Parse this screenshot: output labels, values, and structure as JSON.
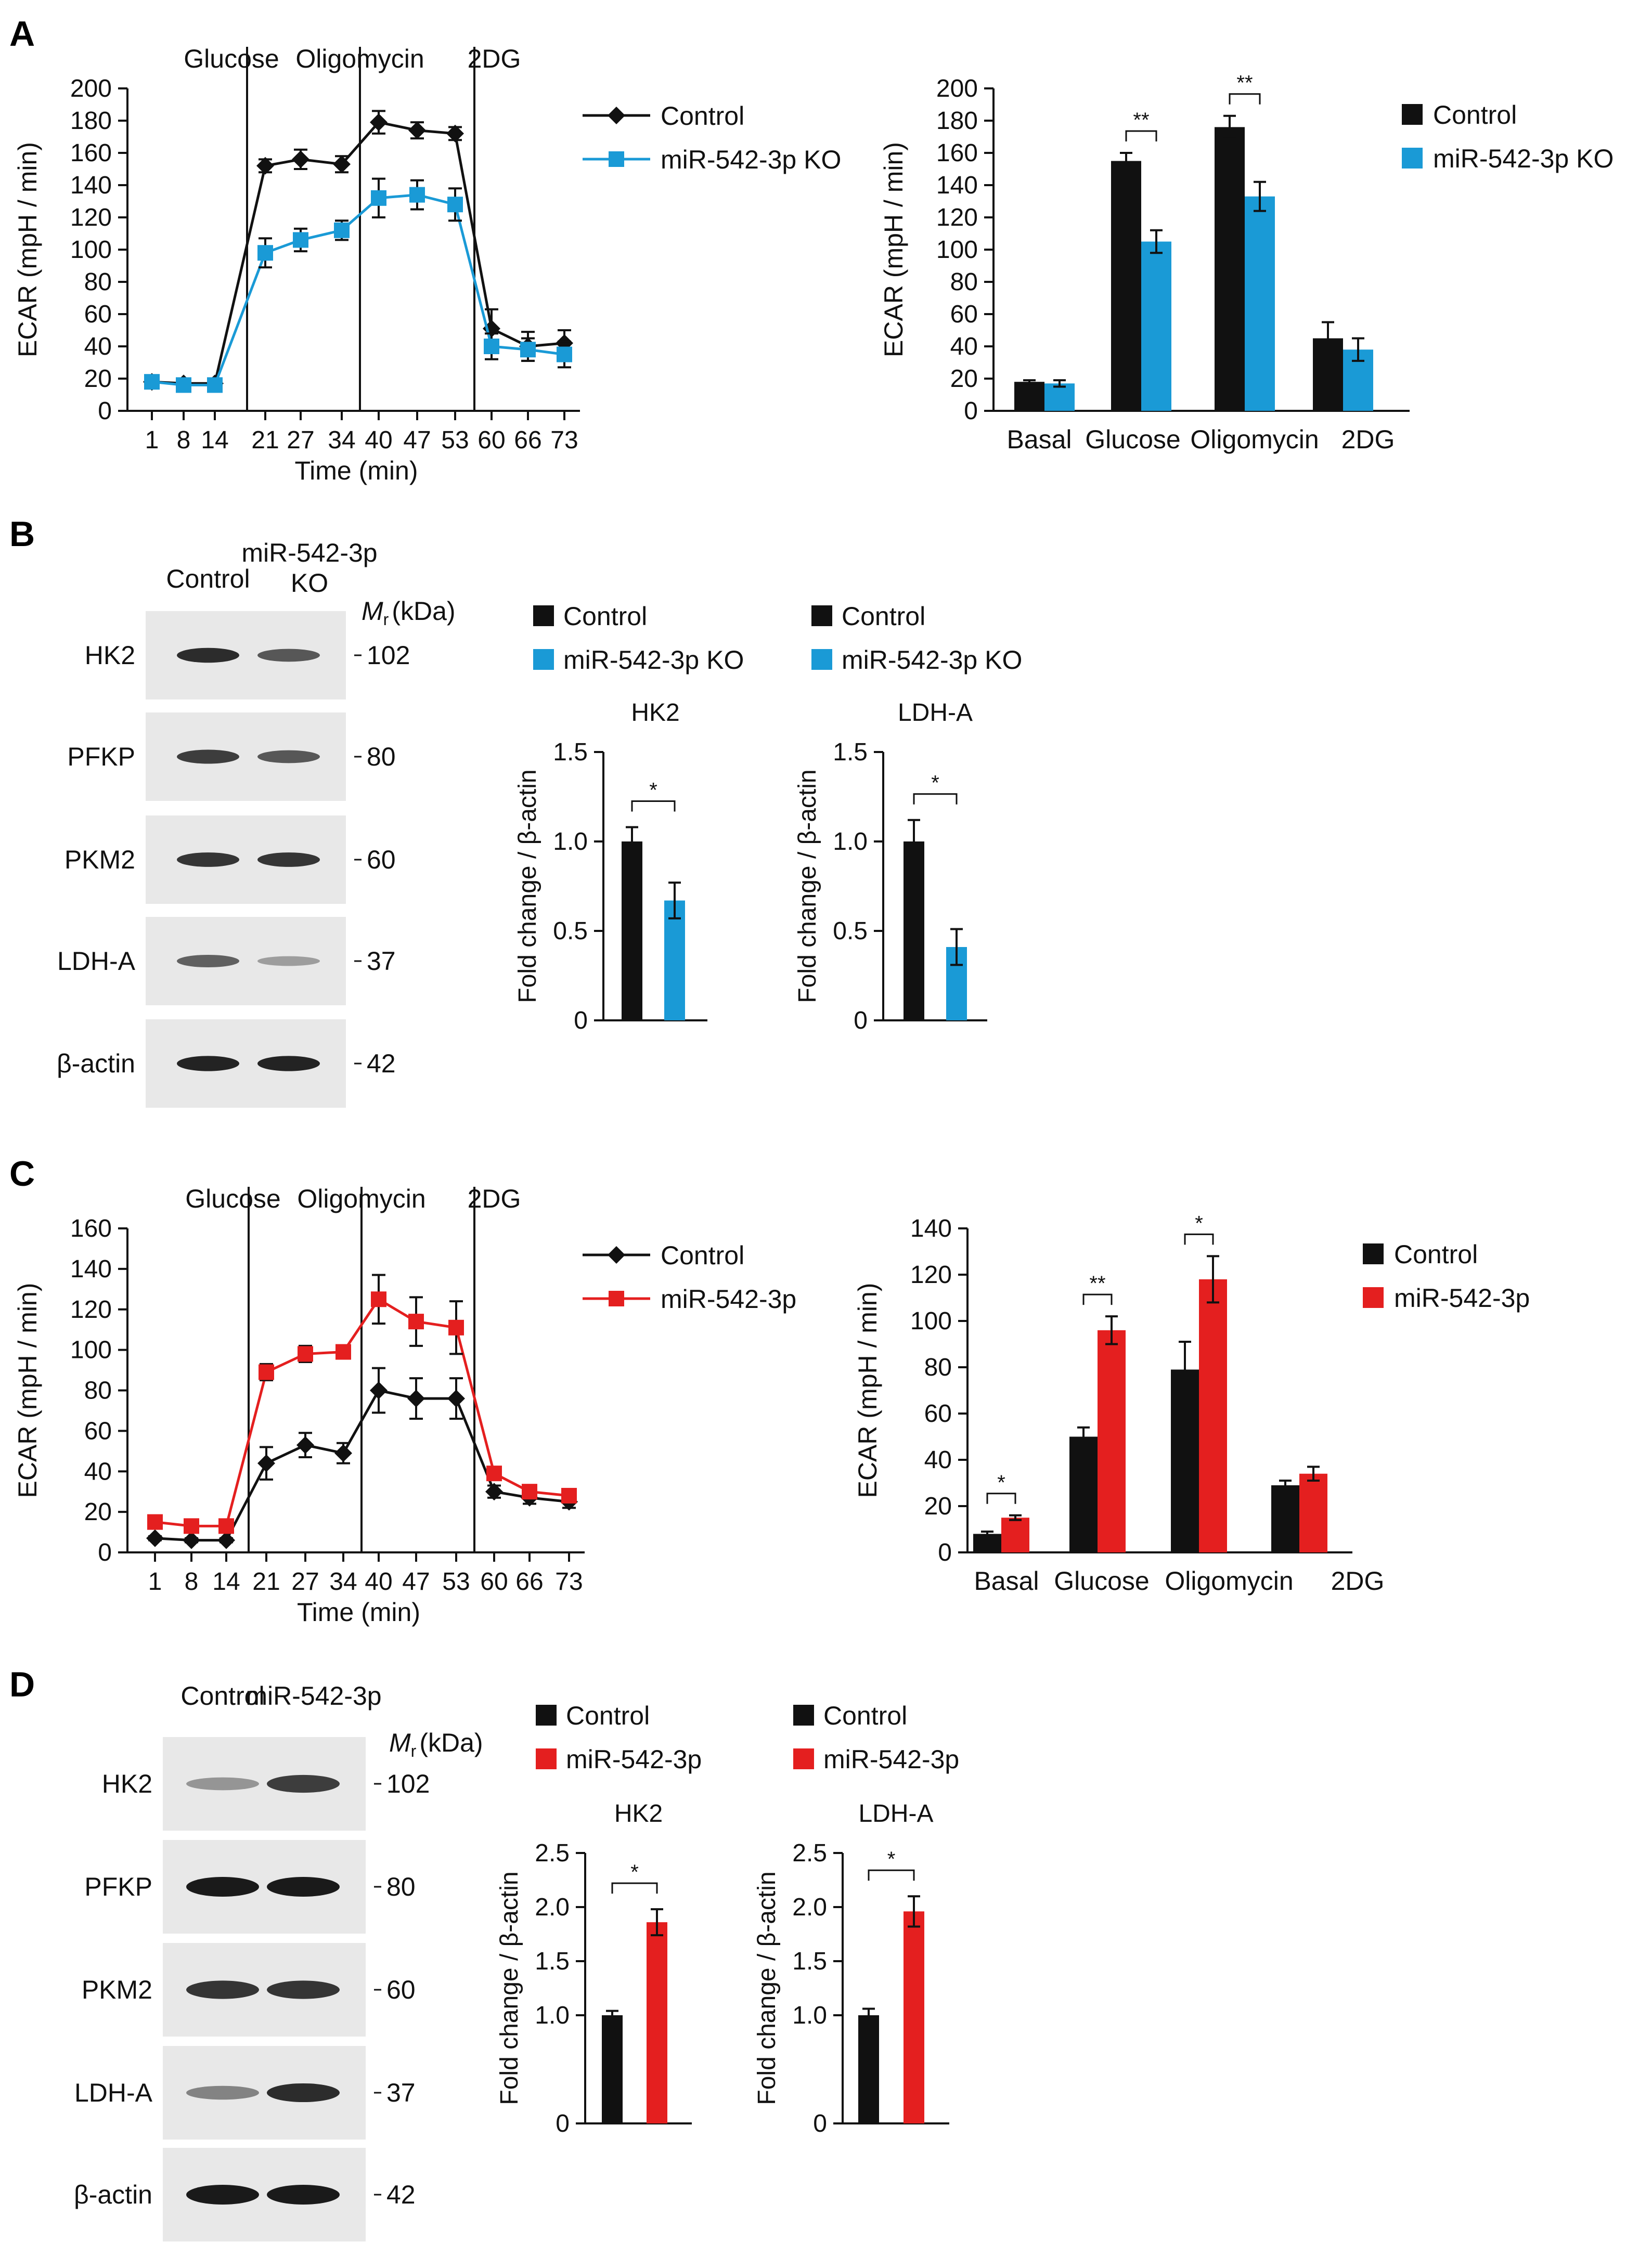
{
  "colors": {
    "control": "#111111",
    "ko": "#1a9ad6",
    "mir": "#e41f1f",
    "blot_bg": "#e8e8e8",
    "band": "#1a1a1a"
  },
  "figure": {
    "panels": [
      {
        "label": "A",
        "legend_control": "Control",
        "legend_treat": "miR-542-3p KO"
      },
      {
        "label": "B",
        "lane_control": "Control",
        "lane_treat_1": "miR-542-3p",
        "lane_treat_2": "KO",
        "mr_label": "(kDa)"
      },
      {
        "label": "C",
        "legend_control": "Control",
        "legend_treat": "miR-542-3p"
      },
      {
        "label": "D",
        "lane_control": "Control",
        "lane_treat": "miR-542-3p",
        "mr_label": "(kDa)"
      }
    ]
  },
  "blots": {
    "B": {
      "rows": [
        {
          "protein": "HK2",
          "mw": "102",
          "control": 0.9,
          "treat": 0.65
        },
        {
          "protein": "PFKP",
          "mw": "80",
          "control": 0.8,
          "treat": 0.65
        },
        {
          "protein": "PKM2",
          "mw": "60",
          "control": 0.85,
          "treat": 0.85
        },
        {
          "protein": "LDH-A",
          "mw": "37",
          "control": 0.6,
          "treat": 0.25
        },
        {
          "protein": "β-actin",
          "mw": "42",
          "control": 0.95,
          "treat": 0.95
        }
      ]
    },
    "D": {
      "rows": [
        {
          "protein": "HK2",
          "mw": "102",
          "control": 0.3,
          "treat": 0.8
        },
        {
          "protein": "PFKP",
          "mw": "80",
          "control": 1.0,
          "treat": 1.0
        },
        {
          "protein": "PKM2",
          "mw": "60",
          "control": 0.85,
          "treat": 0.85
        },
        {
          "protein": "LDH-A",
          "mw": "37",
          "control": 0.4,
          "treat": 0.9
        },
        {
          "protein": "β-actin",
          "mw": "42",
          "control": 1.0,
          "treat": 1.0
        }
      ]
    }
  },
  "chart_data": [
    {
      "id": "A-line",
      "type": "line",
      "panel": "A",
      "xlabel": "Time (min)",
      "ylabel": "ECAR (mpH / min)",
      "ylim": [
        0,
        200
      ],
      "yticks": [
        0,
        20,
        40,
        60,
        80,
        100,
        120,
        140,
        160,
        180,
        200
      ],
      "x": [
        "1",
        "8",
        "14",
        "21",
        "27",
        "34",
        "40",
        "47",
        "53",
        "60",
        "66",
        "73"
      ],
      "injections": [
        "Glucose",
        "Oligomycin",
        "2DG"
      ],
      "series": [
        {
          "name": "Control",
          "color_key": "control",
          "marker": "diamond",
          "values": [
            18,
            17,
            17,
            152,
            156,
            153,
            179,
            174,
            172,
            51,
            40,
            42
          ],
          "errors": [
            2,
            2,
            2,
            4,
            6,
            5,
            7,
            5,
            4,
            12,
            9,
            8
          ]
        },
        {
          "name": "miR-542-3p KO",
          "color_key": "ko",
          "marker": "square",
          "values": [
            18,
            16,
            16,
            98,
            106,
            112,
            132,
            134,
            128,
            40,
            38,
            35
          ],
          "errors": [
            3,
            2,
            2,
            9,
            7,
            6,
            12,
            9,
            10,
            8,
            7,
            8
          ]
        }
      ]
    },
    {
      "id": "A-bar",
      "type": "bar",
      "panel": "A",
      "ylabel": "ECAR (mpH / min)",
      "ylim": [
        0,
        200
      ],
      "yticks": [
        0,
        20,
        40,
        60,
        80,
        100,
        120,
        140,
        160,
        180,
        200
      ],
      "categories": [
        "Basal",
        "Glucose",
        "Oligomycin",
        "2DG"
      ],
      "series": [
        {
          "name": "Control",
          "color_key": "control",
          "values": [
            18,
            155,
            176,
            45
          ],
          "errors": [
            1,
            5,
            7,
            10
          ]
        },
        {
          "name": "miR-542-3p KO",
          "color_key": "ko",
          "values": [
            17,
            105,
            133,
            38
          ],
          "errors": [
            2,
            7,
            9,
            7
          ]
        }
      ],
      "significance": [
        "",
        "**",
        "**",
        ""
      ]
    },
    {
      "id": "B-HK2",
      "type": "bar",
      "panel": "B",
      "title": "HK2",
      "ylabel": "Fold change / β-actin",
      "ylim": [
        0,
        1.5
      ],
      "yticks": [
        "0",
        "0.5",
        "1.0",
        "1.5"
      ],
      "categories": [
        "Control",
        "miR-542-3p KO"
      ],
      "color_keys": [
        "control",
        "ko"
      ],
      "values": [
        1.0,
        0.67
      ],
      "errors": [
        0.08,
        0.1
      ],
      "significance": "*"
    },
    {
      "id": "B-LDHA",
      "type": "bar",
      "panel": "B",
      "title": "LDH-A",
      "ylabel": "Fold change / β-actin",
      "ylim": [
        0,
        1.5
      ],
      "yticks": [
        "0",
        "0.5",
        "1.0",
        "1.5"
      ],
      "categories": [
        "Control",
        "miR-542-3p KO"
      ],
      "color_keys": [
        "control",
        "ko"
      ],
      "values": [
        1.0,
        0.41
      ],
      "errors": [
        0.12,
        0.1
      ],
      "significance": "*"
    },
    {
      "id": "C-line",
      "type": "line",
      "panel": "C",
      "xlabel": "Time (min)",
      "ylabel": "ECAR (mpH / min)",
      "ylim": [
        0,
        160
      ],
      "yticks": [
        0,
        20,
        40,
        60,
        80,
        100,
        120,
        140,
        160
      ],
      "x": [
        "1",
        "8",
        "14",
        "21",
        "27",
        "34",
        "40",
        "47",
        "53",
        "60",
        "66",
        "73"
      ],
      "injections": [
        "Glucose",
        "Oligomycin",
        "2DG"
      ],
      "series": [
        {
          "name": "Control",
          "color_key": "control",
          "marker": "diamond",
          "values": [
            7,
            6,
            6,
            44,
            53,
            49,
            80,
            76,
            76,
            30,
            27,
            25
          ],
          "errors": [
            1,
            1,
            1,
            8,
            6,
            5,
            11,
            10,
            10,
            3,
            3,
            3
          ]
        },
        {
          "name": "miR-542-3p",
          "color_key": "mir",
          "marker": "square",
          "values": [
            15,
            13,
            13,
            89,
            98,
            99,
            125,
            114,
            111,
            39,
            30,
            28
          ],
          "errors": [
            1,
            1,
            1,
            4,
            4,
            3,
            12,
            12,
            13,
            2,
            2,
            2
          ]
        }
      ]
    },
    {
      "id": "C-bar",
      "type": "bar",
      "panel": "C",
      "ylabel": "ECAR (mpH / min)",
      "ylim": [
        0,
        140
      ],
      "yticks": [
        0,
        20,
        40,
        60,
        80,
        100,
        120,
        140
      ],
      "categories": [
        "Basal",
        "Glucose",
        "Oligomycin",
        "2DG"
      ],
      "series": [
        {
          "name": "Control",
          "color_key": "control",
          "values": [
            8,
            50,
            79,
            29
          ],
          "errors": [
            1,
            4,
            12,
            2
          ]
        },
        {
          "name": "miR-542-3p",
          "color_key": "mir",
          "values": [
            15,
            96,
            118,
            34
          ],
          "errors": [
            1,
            6,
            10,
            3
          ]
        }
      ],
      "significance": [
        "*",
        "**",
        "*",
        ""
      ]
    },
    {
      "id": "D-HK2",
      "type": "bar",
      "panel": "D",
      "title": "HK2",
      "ylabel": "Fold change / β-actin",
      "ylim": [
        0,
        2.5
      ],
      "yticks": [
        "0",
        "1.0",
        "1.5",
        "2.0",
        "2.5"
      ],
      "categories": [
        "Control",
        "miR-542-3p"
      ],
      "color_keys": [
        "control",
        "mir"
      ],
      "values": [
        1.0,
        1.86
      ],
      "errors": [
        0.04,
        0.12
      ],
      "significance": "*"
    },
    {
      "id": "D-LDHA",
      "type": "bar",
      "panel": "D",
      "title": "LDH-A",
      "ylabel": "Fold change / β-actin",
      "ylim": [
        0,
        2.5
      ],
      "yticks": [
        "0",
        "1.0",
        "1.5",
        "2.0",
        "2.5"
      ],
      "categories": [
        "Control",
        "miR-542-3p"
      ],
      "color_keys": [
        "control",
        "mir"
      ],
      "values": [
        1.0,
        1.96
      ],
      "errors": [
        0.06,
        0.14
      ],
      "significance": "*"
    }
  ]
}
